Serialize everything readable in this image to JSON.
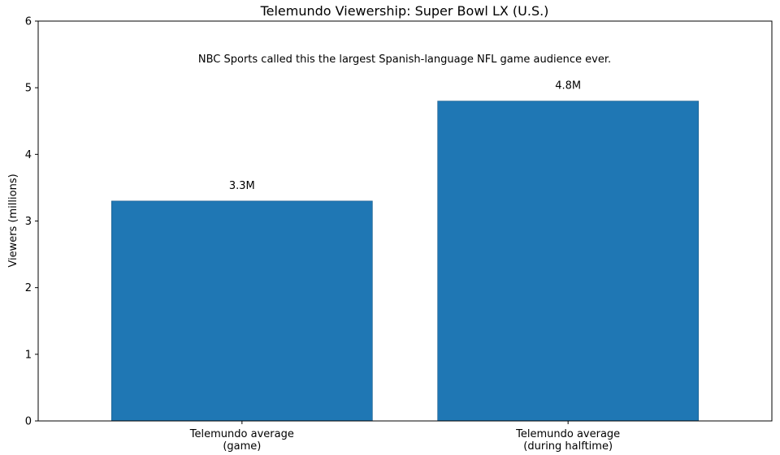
{
  "chart_data": {
    "type": "bar",
    "title": "Telemundo Viewership: Super Bowl LX (U.S.)",
    "xlabel": "",
    "ylabel": "Viewers (millions)",
    "ylim": [
      0,
      6
    ],
    "yticks": [
      0,
      1,
      2,
      3,
      4,
      5,
      6
    ],
    "categories": [
      [
        "Telemundo average",
        "(game)"
      ],
      [
        "Telemundo average",
        "(during halftime)"
      ]
    ],
    "values": [
      3.3,
      4.8
    ],
    "data_labels": [
      "3.3M",
      "4.8M"
    ],
    "annotation": "NBC Sports called this the largest Spanish-language NFL game audience ever.",
    "grid": false,
    "bar_color": "#1f77b4"
  }
}
